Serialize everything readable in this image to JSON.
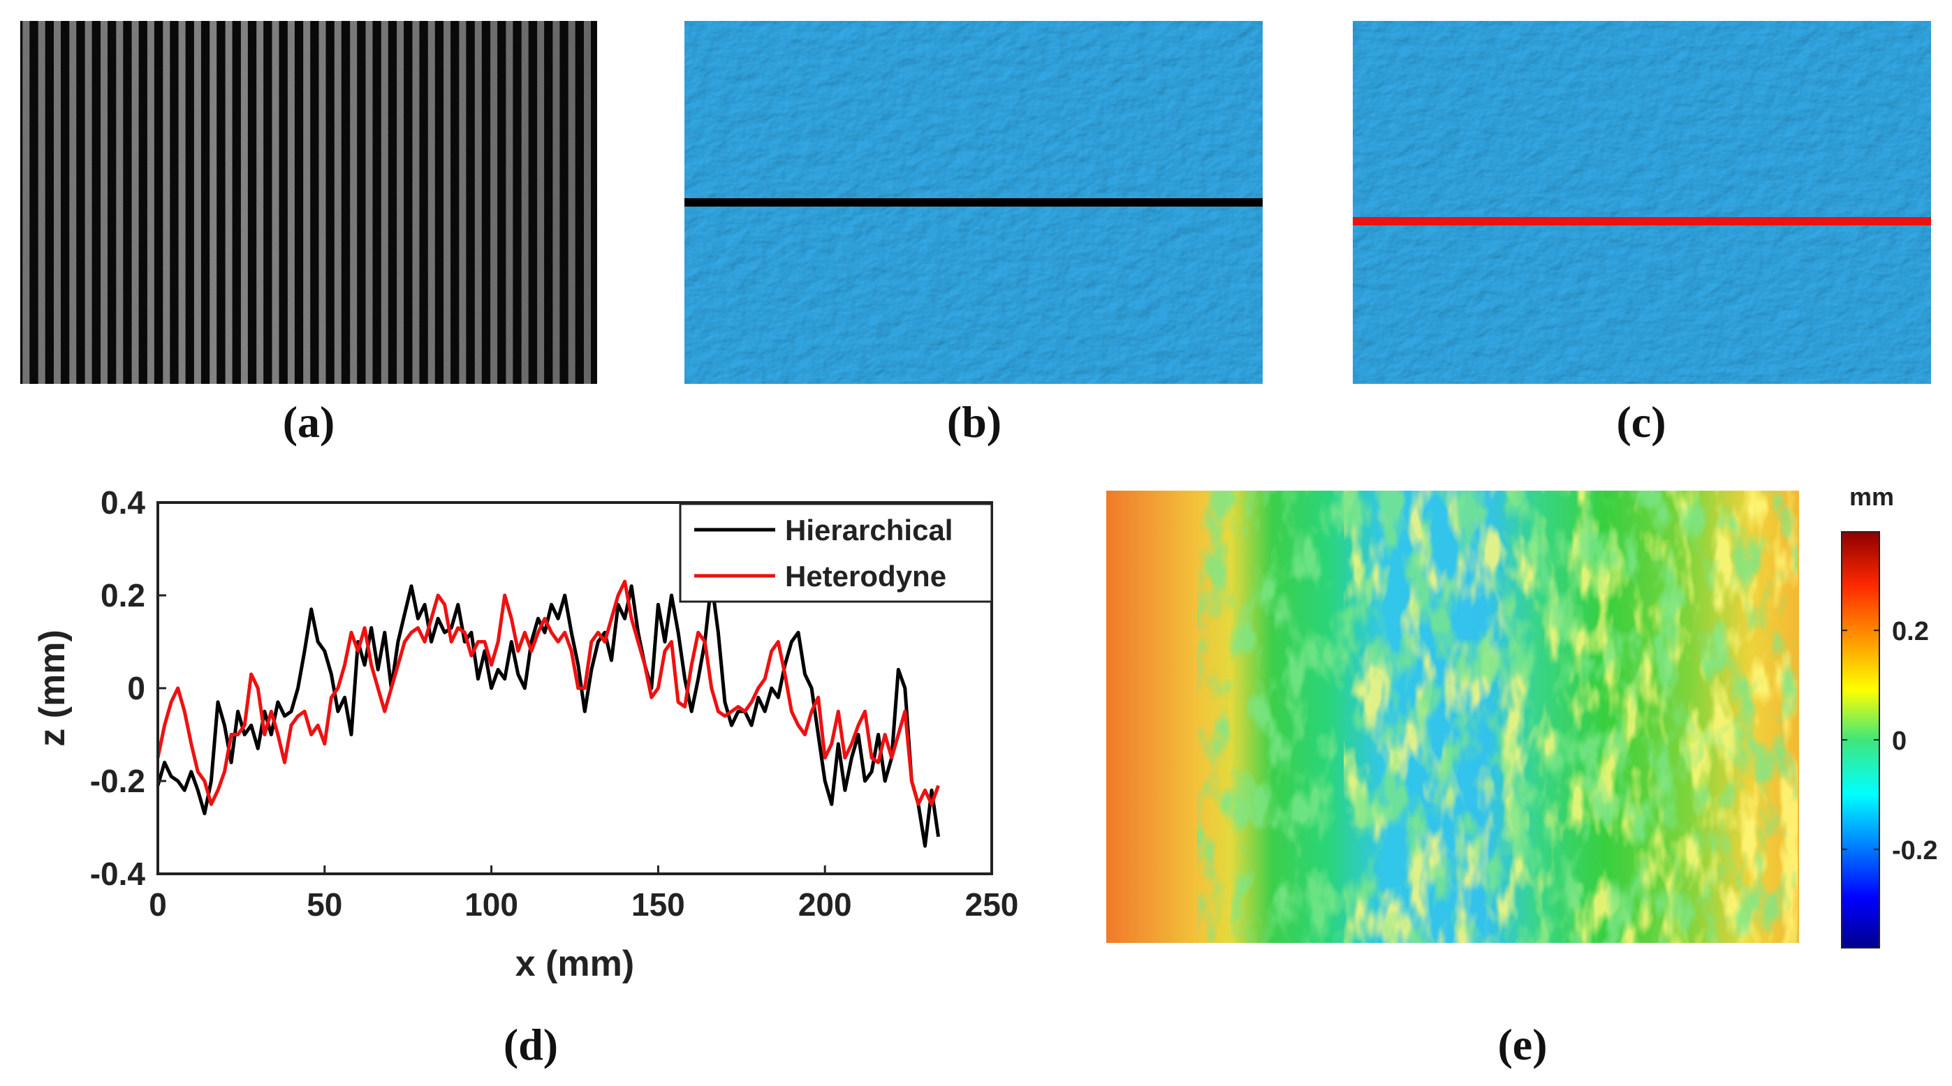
{
  "captions": {
    "a": "(a)",
    "b": "(b)",
    "c": "(c)",
    "d": "(d)",
    "e": "(e)"
  },
  "colors": {
    "surface_blue": "#33a9e6",
    "fringe_dark": "#0b0b0b",
    "fringe_light": "#9a9a9a",
    "hierarchical": "#000000",
    "heterodyne": "#ee1111",
    "section_line_b": "#000000",
    "section_line_c": "#ee1111"
  },
  "fringe_image": {
    "stripe_count": 37
  },
  "colorbar": {
    "unit": "mm",
    "ticks": [
      "0.2",
      "0",
      "-0.2"
    ],
    "tick_values": [
      0.2,
      0,
      -0.2
    ],
    "range": [
      -0.38,
      0.38
    ]
  },
  "chart_data": {
    "type": "line",
    "title": "",
    "xlabel": "x (mm)",
    "ylabel": "z (mm)",
    "xlim": [
      0,
      250
    ],
    "ylim": [
      -0.4,
      0.4
    ],
    "xticks": [
      0,
      50,
      100,
      150,
      200,
      250
    ],
    "xtick_labels": [
      "0",
      "50",
      "100",
      "150",
      "200",
      "250"
    ],
    "yticks": [
      0.4,
      0.2,
      0,
      -0.2,
      -0.4
    ],
    "ytick_labels": [
      "0.4",
      "0.2",
      "0",
      "-0.2",
      "-0.4"
    ],
    "legend_position": "top-right",
    "series": [
      {
        "name": "Hierarchical",
        "color": "#000000",
        "x": [
          0,
          2,
          4,
          6,
          8,
          10,
          12,
          14,
          16,
          18,
          20,
          22,
          24,
          26,
          28,
          30,
          32,
          34,
          36,
          38,
          40,
          42,
          44,
          46,
          48,
          50,
          52,
          54,
          56,
          58,
          60,
          62,
          64,
          66,
          68,
          70,
          72,
          74,
          76,
          78,
          80,
          82,
          84,
          86,
          88,
          90,
          92,
          94,
          96,
          98,
          100,
          102,
          104,
          106,
          108,
          110,
          112,
          114,
          116,
          118,
          120,
          122,
          124,
          126,
          128,
          130,
          132,
          134,
          136,
          138,
          140,
          142,
          144,
          146,
          148,
          150,
          152,
          154,
          156,
          158,
          160,
          162,
          164,
          166,
          168,
          170,
          172,
          174,
          176,
          178,
          180,
          182,
          184,
          186,
          188,
          190,
          192,
          194,
          196,
          198,
          200,
          202,
          204,
          206,
          208,
          210,
          212,
          214,
          216,
          218,
          220,
          222,
          224,
          226,
          228,
          230,
          232,
          234
        ],
        "values": [
          -0.21,
          -0.16,
          -0.19,
          -0.2,
          -0.22,
          -0.18,
          -0.22,
          -0.27,
          -0.2,
          -0.03,
          -0.08,
          -0.16,
          -0.05,
          -0.1,
          -0.08,
          -0.13,
          -0.05,
          -0.1,
          -0.03,
          -0.06,
          -0.05,
          0.0,
          0.08,
          0.17,
          0.1,
          0.08,
          0.03,
          -0.05,
          -0.02,
          -0.1,
          0.1,
          0.05,
          0.13,
          0.04,
          0.12,
          0.0,
          0.1,
          0.16,
          0.22,
          0.15,
          0.18,
          0.1,
          0.15,
          0.12,
          0.13,
          0.18,
          0.1,
          0.12,
          0.02,
          0.08,
          0.0,
          0.04,
          0.02,
          0.1,
          0.03,
          0.0,
          0.1,
          0.15,
          0.12,
          0.18,
          0.15,
          0.2,
          0.12,
          0.05,
          -0.05,
          0.04,
          0.1,
          0.12,
          0.06,
          0.18,
          0.15,
          0.22,
          0.12,
          0.05,
          0.0,
          0.18,
          0.1,
          0.2,
          0.12,
          0.02,
          -0.05,
          0.02,
          0.1,
          0.23,
          0.12,
          -0.03,
          -0.08,
          -0.05,
          -0.05,
          -0.08,
          -0.02,
          -0.05,
          0.0,
          -0.02,
          0.05,
          0.1,
          0.12,
          0.03,
          0.0,
          -0.1,
          -0.2,
          -0.25,
          -0.12,
          -0.22,
          -0.15,
          -0.1,
          -0.2,
          -0.18,
          -0.1,
          -0.2,
          -0.15,
          0.04,
          0.0,
          -0.2,
          -0.25,
          -0.34,
          -0.22,
          -0.32
        ]
      },
      {
        "name": "Heterodyne",
        "color": "#ee1111",
        "x": [
          0,
          2,
          4,
          6,
          8,
          10,
          12,
          14,
          16,
          18,
          20,
          22,
          24,
          26,
          28,
          30,
          32,
          34,
          36,
          38,
          40,
          42,
          44,
          46,
          48,
          50,
          52,
          54,
          56,
          58,
          60,
          62,
          64,
          66,
          68,
          70,
          72,
          74,
          76,
          78,
          80,
          82,
          84,
          86,
          88,
          90,
          92,
          94,
          96,
          98,
          100,
          102,
          104,
          106,
          108,
          110,
          112,
          114,
          116,
          118,
          120,
          122,
          124,
          126,
          128,
          130,
          132,
          134,
          136,
          138,
          140,
          142,
          144,
          146,
          148,
          150,
          152,
          154,
          156,
          158,
          160,
          162,
          164,
          166,
          168,
          170,
          172,
          174,
          176,
          178,
          180,
          182,
          184,
          186,
          188,
          190,
          192,
          194,
          196,
          198,
          200,
          202,
          204,
          206,
          208,
          210,
          212,
          214,
          216,
          218,
          220,
          222,
          224,
          226,
          228,
          230,
          232,
          234
        ],
        "values": [
          -0.15,
          -0.08,
          -0.03,
          0.0,
          -0.05,
          -0.12,
          -0.18,
          -0.2,
          -0.25,
          -0.22,
          -0.18,
          -0.1,
          -0.1,
          -0.08,
          0.03,
          0.0,
          -0.1,
          -0.05,
          -0.1,
          -0.16,
          -0.08,
          -0.06,
          -0.05,
          -0.1,
          -0.08,
          -0.12,
          -0.02,
          0.0,
          0.05,
          0.12,
          0.08,
          0.13,
          0.05,
          0.0,
          -0.05,
          0.0,
          0.05,
          0.1,
          0.12,
          0.13,
          0.1,
          0.15,
          0.2,
          0.18,
          0.1,
          0.13,
          0.12,
          0.07,
          0.1,
          0.1,
          0.05,
          0.1,
          0.2,
          0.15,
          0.08,
          0.12,
          0.08,
          0.12,
          0.15,
          0.12,
          0.1,
          0.12,
          0.08,
          0.0,
          0.0,
          0.1,
          0.12,
          0.1,
          0.15,
          0.2,
          0.23,
          0.15,
          0.1,
          0.05,
          -0.02,
          0.0,
          0.08,
          0.1,
          -0.03,
          -0.04,
          0.05,
          0.12,
          0.1,
          0.0,
          -0.05,
          -0.06,
          -0.05,
          -0.04,
          -0.05,
          -0.03,
          0.0,
          0.02,
          0.08,
          0.1,
          0.03,
          -0.05,
          -0.08,
          -0.1,
          -0.05,
          -0.02,
          -0.15,
          -0.12,
          -0.05,
          -0.15,
          -0.12,
          -0.08,
          -0.05,
          -0.15,
          -0.16,
          -0.1,
          -0.15,
          -0.1,
          -0.05,
          -0.2,
          -0.25,
          -0.22,
          -0.25,
          -0.21
        ]
      }
    ]
  }
}
